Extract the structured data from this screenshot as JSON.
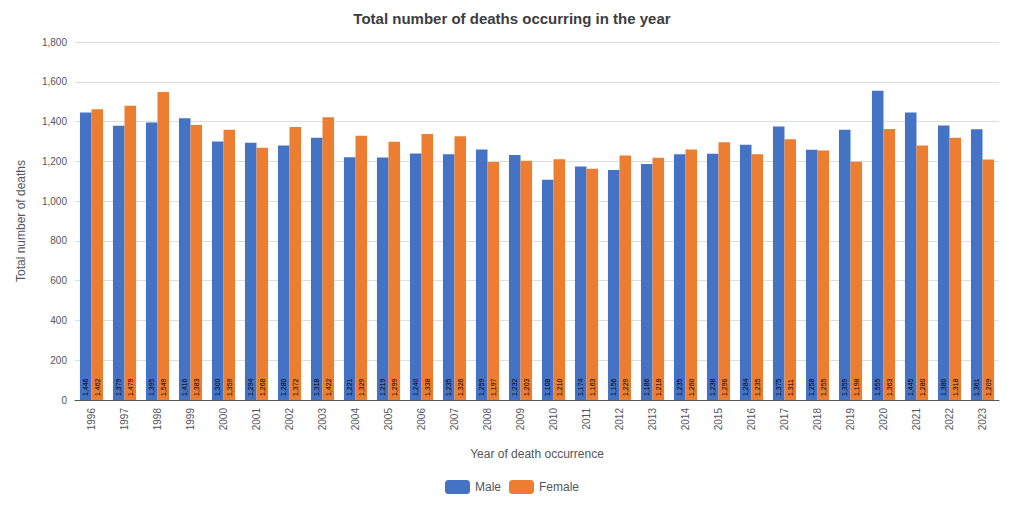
{
  "chart_data": {
    "type": "bar",
    "title": "Total number of deaths occurring in the year",
    "xlabel": "Year of death occurrence",
    "ylabel": "Total number of deaths",
    "categories": [
      "1996",
      "1997",
      "1998",
      "1999",
      "2000",
      "2001",
      "2002",
      "2003",
      "2004",
      "2005",
      "2006",
      "2007",
      "2008",
      "2009",
      "2010",
      "2011",
      "2012",
      "2013",
      "2014",
      "2015",
      "2016",
      "2017",
      "2018",
      "2019",
      "2020",
      "2021",
      "2022",
      "2023"
    ],
    "series": [
      {
        "name": "Male",
        "color": "#4472C4",
        "values": [
          1446,
          1379,
          1395,
          1416,
          1300,
          1294,
          1280,
          1318,
          1221,
          1219,
          1240,
          1235,
          1259,
          1232,
          1108,
          1174,
          1156,
          1186,
          1235,
          1238,
          1284,
          1375,
          1258,
          1359,
          1555,
          1445,
          1380,
          1361
        ],
        "value_labels": [
          "1,446",
          "1,379",
          "1,395",
          "1,416",
          "1,300",
          "1,294",
          "1,280",
          "1,318",
          "1,221",
          "1,219",
          "1,240",
          "1,235",
          "1,259",
          "1,232",
          "1,108",
          "1,174",
          "1,156",
          "1,186",
          "1,235",
          "1,238",
          "1,284",
          "1,375",
          "1,258",
          "1,359",
          "1,555",
          "1,445",
          "1,380",
          "1,361"
        ]
      },
      {
        "name": "Female",
        "color": "#ED7D31",
        "values": [
          1462,
          1479,
          1549,
          1383,
          1359,
          1268,
          1372,
          1422,
          1329,
          1299,
          1338,
          1326,
          1197,
          1203,
          1210,
          1163,
          1229,
          1218,
          1260,
          1296,
          1235,
          1311,
          1255,
          1198,
          1363,
          1280,
          1318,
          1209
        ],
        "value_labels": [
          "1,462",
          "1,479",
          "1,549",
          "1,383",
          "1,359",
          "1,268",
          "1,372",
          "1,422",
          "1,329",
          "1,299",
          "1,338",
          "1,326",
          "1,197",
          "1,203",
          "1,210",
          "1,163",
          "1,229",
          "1,218",
          "1,260",
          "1,296",
          "1,235",
          "1,311",
          "1,255",
          "1,198",
          "1,363",
          "1,280",
          "1,318",
          "1,209"
        ]
      }
    ],
    "ylim": [
      0,
      1800
    ],
    "yticks": [
      0,
      200,
      400,
      600,
      800,
      {
        "value": 1000,
        "label": "1,000"
      },
      {
        "value": 1200,
        "label": "1,200"
      },
      {
        "value": 1400,
        "label": "1,400"
      },
      {
        "value": 1600,
        "label": "1,600"
      },
      {
        "value": 1800,
        "label": "1,800"
      }
    ],
    "grid": true,
    "legend": "bottom",
    "data_labels": true
  }
}
